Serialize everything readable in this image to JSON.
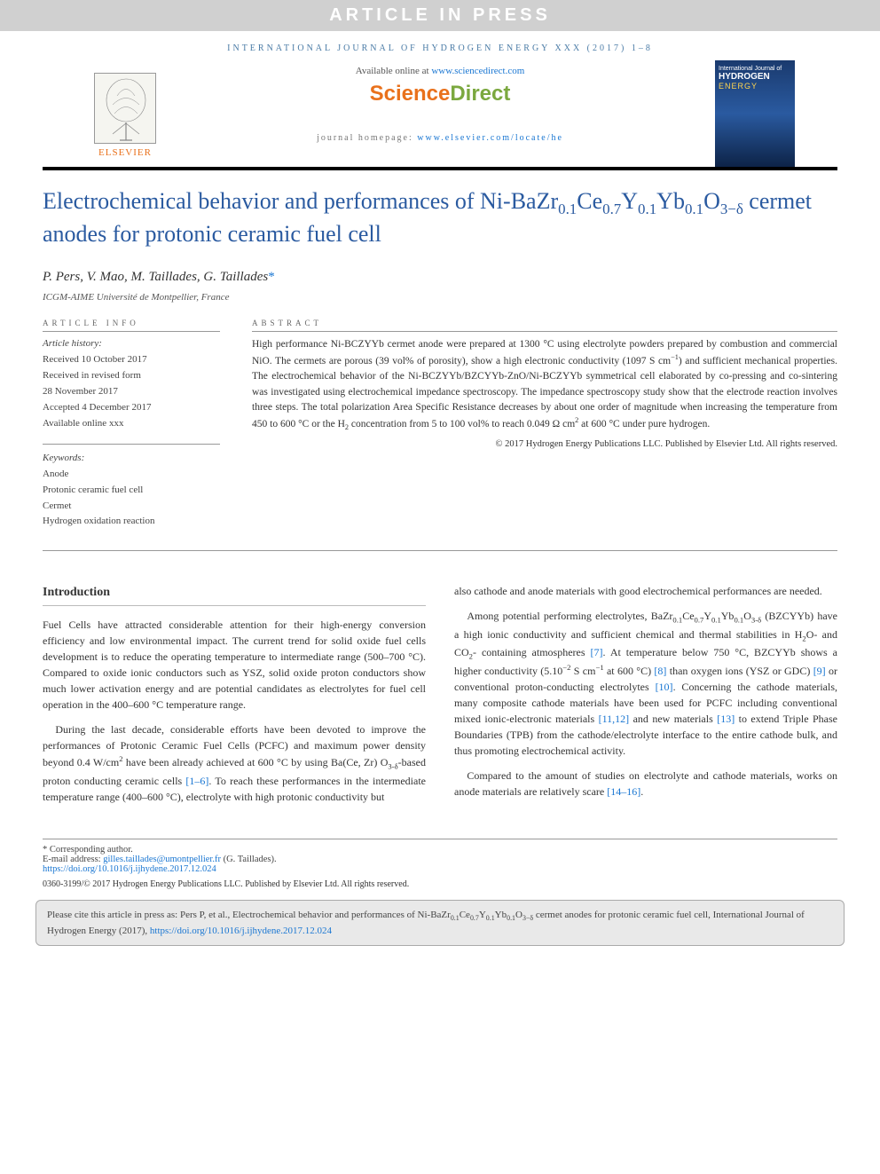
{
  "banner": "ARTICLE IN PRESS",
  "journal_header": "INTERNATIONAL JOURNAL OF HYDROGEN ENERGY XXX (2017) 1–8",
  "top": {
    "elsevier": "ELSEVIER",
    "available_prefix": "Available online at ",
    "available_link": "www.sciencedirect.com",
    "brand": "ScienceDirect",
    "homepage_prefix": "journal homepage: ",
    "homepage_link": "www.elsevier.com/locate/he",
    "cover_line1": "International Journal of",
    "cover_line2": "HYDROGEN",
    "cover_line3": "ENERGY"
  },
  "title_html": "Electrochemical behavior and performances of Ni-BaZr<sub>0.1</sub>Ce<sub>0.7</sub>Y<sub>0.1</sub>Yb<sub>0.1</sub>O<sub>3−δ</sub> cermet anodes for protonic ceramic fuel cell",
  "authors_html": "P. Pers, V. Mao, M. Taillades, G. Taillades<span class='corr'>*</span>",
  "affiliation": "ICGM-AIME Université de Montpellier, France",
  "info_heading": "ARTICLE INFO",
  "abstract_heading": "ABSTRACT",
  "history": {
    "label": "Article history:",
    "received": "Received 10 October 2017",
    "revised1": "Received in revised form",
    "revised2": "28 November 2017",
    "accepted": "Accepted 4 December 2017",
    "online": "Available online xxx"
  },
  "keywords": {
    "label": "Keywords:",
    "items": [
      "Anode",
      "Protonic ceramic fuel cell",
      "Cermet",
      "Hydrogen oxidation reaction"
    ]
  },
  "abstract_html": "High performance Ni-BCZYYb cermet anode were prepared at 1300 °C using electrolyte powders prepared by combustion and commercial NiO. The cermets are porous (39 vol% of porosity), show a high electronic conductivity (1097 S cm<sup>−1</sup>) and sufficient mechanical properties. The electrochemical behavior of the Ni-BCZYYb/BZCYYb-ZnO/Ni-BCZYYb symmetrical cell elaborated by co-pressing and co-sintering was investigated using electrochemical impedance spectroscopy. The impedance spectroscopy study show that the electrode reaction involves three steps. The total polarization Area Specific Resistance decreases by about one order of magnitude when increasing the temperature from 450 to 600 °C or the H<sub>2</sub> concentration from 5 to 100 vol% to reach 0.049 Ω cm<sup>2</sup> at 600 °C under pure hydrogen.",
  "copyright": "© 2017 Hydrogen Energy Publications LLC. Published by Elsevier Ltd. All rights reserved.",
  "intro_heading": "Introduction",
  "col1": {
    "p1": "Fuel Cells have attracted considerable attention for their high-energy conversion efficiency and low environmental impact. The current trend for solid oxide fuel cells development is to reduce the operating temperature to intermediate range (500–700 °C). Compared to oxide ionic conductors such as YSZ, solid oxide proton conductors show much lower activation energy and are potential candidates as electrolytes for fuel cell operation in the 400–600 °C temperature range.",
    "p2_html": "During the last decade, considerable efforts have been devoted to improve the performances of Protonic Ceramic Fuel Cells (PCFC) and maximum power density beyond 0.4 W/cm<sup>2</sup> have been already achieved at 600 °C by using Ba(Ce, Zr) O<sub>3-δ</sub>-based proton conducting ceramic cells <span class='ref'>[1–6]</span>. To reach these performances in the intermediate temperature range (400–600 °C), electrolyte with high protonic conductivity but"
  },
  "col2": {
    "p1": "also cathode and anode materials with good electrochemical performances are needed.",
    "p2_html": "Among potential performing electrolytes, BaZr<sub>0.1</sub>Ce<sub>0.7</sub>Y<sub>0.1</sub>Yb<sub>0.1</sub>O<sub>3-δ</sub> (BZCYYb) have a high ionic conductivity and sufficient chemical and thermal stabilities in H<sub>2</sub>O- and CO<sub>2</sub>- containing atmospheres <span class='ref'>[7]</span>. At temperature below 750 °C, BZCYYb shows a higher conductivity (5.10<sup>−2</sup> S cm<sup>−1</sup> at 600 °C) <span class='ref'>[8]</span> than oxygen ions (YSZ or GDC) <span class='ref'>[9]</span> or conventional proton-conducting electrolytes <span class='ref'>[10]</span>. Concerning the cathode materials, many composite cathode materials have been used for PCFC including conventional mixed ionic-electronic materials <span class='ref'>[11,12]</span> and new materials <span class='ref'>[13]</span> to extend Triple Phase Boundaries (TPB) from the cathode/electrolyte interface to the entire cathode bulk, and thus promoting electrochemical activity.",
    "p3_html": "Compared to the amount of studies on electrolyte and cathode materials, works on anode materials are relatively scare <span class='ref'>[14–16]</span>."
  },
  "footnotes": {
    "corr": "* Corresponding author.",
    "email_label": "E-mail address: ",
    "email": "gilles.taillades@umontpellier.fr",
    "email_suffix": " (G. Taillades).",
    "doi": "https://doi.org/10.1016/j.ijhydene.2017.12.024"
  },
  "bottom_line": "0360-3199/© 2017 Hydrogen Energy Publications LLC. Published by Elsevier Ltd. All rights reserved.",
  "cite_box_html": "Please cite this article in press as: Pers P, et al., Electrochemical behavior and performances of Ni-BaZr<sub>0.1</sub>Ce<sub>0.7</sub>Y<sub>0.1</sub>Yb<sub>0.1</sub>O<sub>3−δ</sub> cermet anodes for protonic ceramic fuel cell, International Journal of Hydrogen Energy (2017), <a href='#'>https://doi.org/10.1016/j.ijhydene.2017.12.024</a>",
  "colors": {
    "link": "#1976d2",
    "accent_blue": "#2a5aa0",
    "elsevier_orange": "#e9711c",
    "banner_bg": "#d0d0d0"
  }
}
